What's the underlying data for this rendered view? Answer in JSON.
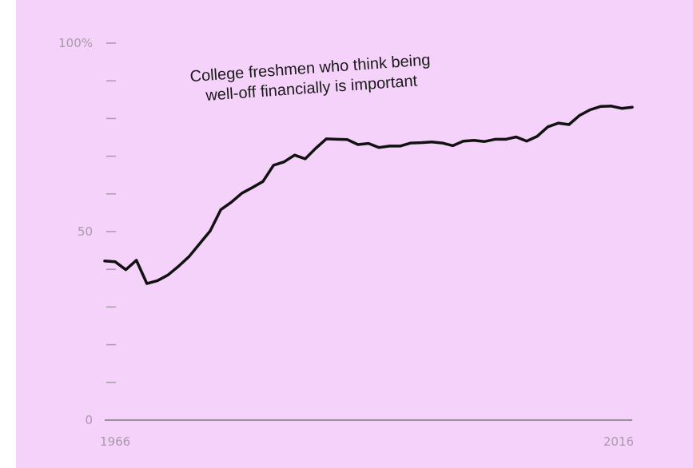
{
  "chart_data": {
    "type": "line",
    "title": "",
    "xlabel": "",
    "ylabel": "",
    "xlim": [
      1966,
      2016
    ],
    "ylim": [
      0,
      100
    ],
    "y_ticks": [
      {
        "value": 100,
        "label": "100%"
      },
      {
        "value": 90,
        "label": ""
      },
      {
        "value": 80,
        "label": ""
      },
      {
        "value": 70,
        "label": ""
      },
      {
        "value": 60,
        "label": ""
      },
      {
        "value": 50,
        "label": "50"
      },
      {
        "value": 40,
        "label": ""
      },
      {
        "value": 30,
        "label": ""
      },
      {
        "value": 20,
        "label": ""
      },
      {
        "value": 10,
        "label": ""
      },
      {
        "value": 0,
        "label": "0"
      }
    ],
    "x_ticks": [
      {
        "value": 1966,
        "label": "1966"
      },
      {
        "value": 2016,
        "label": "2016"
      }
    ],
    "annotation": {
      "lines": [
        "College freshmen who think being",
        "well-off financially is important"
      ],
      "x": 1985.5,
      "y": 92,
      "rotate": -4
    },
    "series": [
      {
        "name": "",
        "color": "#111111",
        "x": [
          1966,
          1967,
          1968,
          1969,
          1970,
          1971,
          1972,
          1973,
          1974,
          1975,
          1976,
          1977,
          1978,
          1979,
          1980,
          1981,
          1982,
          1983,
          1984,
          1985,
          1986,
          1987,
          1988,
          1989,
          1990,
          1991,
          1992,
          1993,
          1994,
          1995,
          1996,
          1997,
          1998,
          1999,
          2000,
          2001,
          2002,
          2003,
          2004,
          2005,
          2006,
          2007,
          2008,
          2009,
          2010,
          2011,
          2012,
          2013,
          2014,
          2015,
          2016
        ],
        "y": [
          42.2,
          42.0,
          39.9,
          42.4,
          36.2,
          37.0,
          38.5,
          40.8,
          43.4,
          46.8,
          50.2,
          55.8,
          57.8,
          60.2,
          61.7,
          63.3,
          67.6,
          68.5,
          70.3,
          69.3,
          72.1,
          74.6,
          74.5,
          74.4,
          73.1,
          73.4,
          72.3,
          72.7,
          72.7,
          73.5,
          73.6,
          73.8,
          73.5,
          72.8,
          74.0,
          74.2,
          73.9,
          74.5,
          74.5,
          75.1,
          74.0,
          75.3,
          77.8,
          78.8,
          78.4,
          80.8,
          82.3,
          83.2,
          83.3,
          82.7,
          83.0
        ]
      }
    ]
  }
}
